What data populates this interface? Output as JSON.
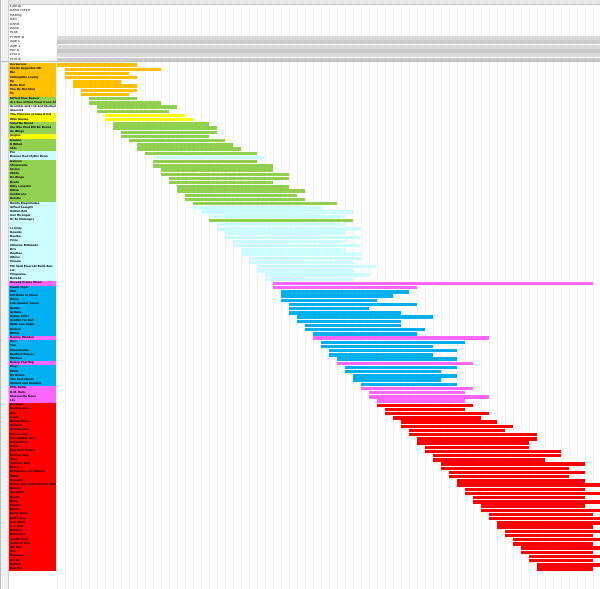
{
  "header_labels": [
    "Group",
    "Band Place",
    "Rating",
    "Bell",
    "Band",
    "Rank",
    "Rule",
    "Prime #",
    "Age 0",
    "Age 1",
    "Rel #",
    "End 0",
    "End #"
  ],
  "week_count": 68,
  "colors": {
    "orange": "#ffc000",
    "yellow": "#ffff00",
    "lightgreen": "#c5e0b3",
    "green": "#92d050",
    "lightblue": "#ccffff",
    "magenta": "#ff66ff",
    "blue": "#00b0f0",
    "red": "#ff0000",
    "white": "#ffffff"
  },
  "songs": [
    {
      "title": "Gorkscrew",
      "color": "orange",
      "start": 0,
      "length": 10,
      "bar": "orange"
    },
    {
      "title": "Chella Regardez IIB",
      "color": "orange",
      "start": 1,
      "length": 12,
      "bar": "orange"
    },
    {
      "title": "Blo",
      "color": "orange",
      "start": 1,
      "length": 8,
      "bar": "orange"
    },
    {
      "title": "Midnightin Loving",
      "color": "orange",
      "start": 1,
      "length": 9,
      "bar": "orange"
    },
    {
      "title": "Pp",
      "color": "orange",
      "start": 2,
      "length": 6,
      "bar": "orange"
    },
    {
      "title": "Belle Bell",
      "color": "orange",
      "start": 2,
      "length": 8,
      "bar": "orange"
    },
    {
      "title": "The By Bel Abel",
      "color": "orange",
      "start": 3,
      "length": 7,
      "bar": "orange"
    },
    {
      "title": "Tu",
      "color": "orange",
      "start": 3,
      "length": 6,
      "bar": "orange"
    },
    {
      "title": "Gifted Blue Beaver",
      "color": "green",
      "start": 4,
      "length": 6,
      "bar": "green"
    },
    {
      "title": "Are See Gifted Posel Irene Alt",
      "color": "green",
      "start": 4,
      "length": 9,
      "bar": "green"
    },
    {
      "title": "Grumble and roll and Medium Alb",
      "color": "white",
      "start": 5,
      "length": 10,
      "bar": "green"
    },
    {
      "title": "Glascott",
      "color": "white",
      "start": 5,
      "length": 9,
      "bar": "green"
    },
    {
      "title": "The Princess of Gela B list",
      "color": "yellow",
      "start": 6,
      "length": 10,
      "bar": "yellow"
    },
    {
      "title": "Wile Kaylee",
      "color": "yellow",
      "start": 6,
      "length": 11,
      "bar": "yellow"
    },
    {
      "title": "Sand Be Bored",
      "color": "green",
      "start": 7,
      "length": 12,
      "bar": "green"
    },
    {
      "title": "Ole Bile Mod Bill Be Bored",
      "color": "green",
      "start": 7,
      "length": 13,
      "bar": "green"
    },
    {
      "title": "Go Bingo",
      "color": "green",
      "start": 8,
      "length": 12,
      "bar": "green"
    },
    {
      "title": "Angles",
      "color": "yellow",
      "start": 8,
      "length": 11,
      "bar": "green"
    },
    {
      "title": "Doubte",
      "color": "green",
      "start": 9,
      "length": 12,
      "bar": "green"
    },
    {
      "title": "K Billed",
      "color": "green",
      "start": 10,
      "length": 12,
      "bar": "green"
    },
    {
      "title": "Shis",
      "color": "green",
      "start": 10,
      "length": 13,
      "bar": "green"
    },
    {
      "title": "Pix",
      "color": "lightblue",
      "start": 11,
      "length": 14,
      "bar": "green"
    },
    {
      "title": "Bonner Red Myths Benn",
      "color": "lightblue",
      "start": 12,
      "length": 14,
      "bar": "lightblue"
    },
    {
      "title": "Galmen",
      "color": "green",
      "start": 12,
      "length": 13,
      "bar": "green"
    },
    {
      "title": "Shewerelle",
      "color": "green",
      "start": 12,
      "length": 15,
      "bar": "green"
    },
    {
      "title": "Sivion",
      "color": "green",
      "start": 13,
      "length": 14,
      "bar": "green"
    },
    {
      "title": "Wilde",
      "color": "green",
      "start": 13,
      "length": 16,
      "bar": "green"
    },
    {
      "title": "Do Bingo",
      "color": "green",
      "start": 14,
      "length": 15,
      "bar": "green"
    },
    {
      "title": "Brads",
      "color": "green",
      "start": 14,
      "length": 13,
      "bar": "green"
    },
    {
      "title": "Dilly Lensohn",
      "color": "green",
      "start": 15,
      "length": 14,
      "bar": "green"
    },
    {
      "title": "Dillan",
      "color": "green",
      "start": 15,
      "length": 16,
      "bar": "green"
    },
    {
      "title": "Sunthrone",
      "color": "green",
      "start": 16,
      "length": 14,
      "bar": "green"
    },
    {
      "title": "Bendie",
      "color": "green",
      "start": 16,
      "length": 15,
      "bar": "green"
    },
    {
      "title": "Banda Magnitudes",
      "color": "lightblue",
      "start": 17,
      "length": 18,
      "bar": "green"
    },
    {
      "title": "Gifted Seeight",
      "color": "lightblue",
      "start": 17,
      "length": 16,
      "bar": "lightblue"
    },
    {
      "title": "Rathin Bell",
      "color": "lightblue",
      "start": 18,
      "length": 19,
      "bar": "lightblue"
    },
    {
      "title": "Ann Birengel",
      "color": "lightblue",
      "start": 19,
      "length": 17,
      "bar": "lightblue"
    },
    {
      "title": "Dr Br Midengel",
      "color": "lightblue",
      "start": 19,
      "length": 18,
      "bar": "green"
    },
    {
      "title": "",
      "color": "lightblue",
      "start": 20,
      "length": 16,
      "bar": "lightblue"
    },
    {
      "title": "Ll Andy",
      "color": "lightblue",
      "start": 20,
      "length": 18,
      "bar": "lightblue"
    },
    {
      "title": "Dewide",
      "color": "lightblue",
      "start": 21,
      "length": 15,
      "bar": "lightblue"
    },
    {
      "title": "Beelbe",
      "color": "lightblue",
      "start": 21,
      "length": 17,
      "bar": "lightblue"
    },
    {
      "title": "Prize",
      "color": "lightblue",
      "start": 22,
      "length": 14,
      "bar": "lightblue"
    },
    {
      "title": "Allianne Midlands",
      "color": "lightblue",
      "start": 22,
      "length": 16,
      "bar": "lightblue"
    },
    {
      "title": "Bris",
      "color": "lightblue",
      "start": 23,
      "length": 13,
      "bar": "lightblue"
    },
    {
      "title": "Beatlee",
      "color": "lightblue",
      "start": 23,
      "length": 15,
      "bar": "lightblue"
    },
    {
      "title": "Whine",
      "color": "lightblue",
      "start": 24,
      "length": 14,
      "bar": "lightblue"
    },
    {
      "title": "Pinana",
      "color": "lightblue",
      "start": 24,
      "length": 13,
      "bar": "lightblue"
    },
    {
      "title": "Pik Spill Emerald Bella Bon",
      "color": "lightblue",
      "start": 25,
      "length": 15,
      "bar": "lightblue"
    },
    {
      "title": "Liz",
      "color": "lightblue",
      "start": 25,
      "length": 12,
      "bar": "lightblue"
    },
    {
      "title": "Pingunine",
      "color": "lightblue",
      "start": 26,
      "length": 13,
      "bar": "lightblue"
    },
    {
      "title": "Boradd",
      "color": "lightblue",
      "start": 26,
      "length": 11,
      "bar": "lightblue"
    },
    {
      "title": "Boradd Praise Moon",
      "color": "magenta",
      "start": 27,
      "length": 40,
      "bar": "magenta"
    },
    {
      "title": "Pewin Tiger",
      "color": "blue",
      "start": 27,
      "length": 18,
      "bar": "magenta"
    },
    {
      "title": "Mill",
      "color": "blue",
      "start": 28,
      "length": 16,
      "bar": "blue"
    },
    {
      "title": "Old Bella in Moon",
      "color": "blue",
      "start": 28,
      "length": 14,
      "bar": "blue"
    },
    {
      "title": "Moon",
      "color": "blue",
      "start": 28,
      "length": 12,
      "bar": "blue"
    },
    {
      "title": "Lad Amelon Sneus",
      "color": "blue",
      "start": 29,
      "length": 16,
      "bar": "blue"
    },
    {
      "title": "Denbo",
      "color": "blue",
      "start": 29,
      "length": 10,
      "bar": "blue"
    },
    {
      "title": "Gribble",
      "color": "blue",
      "start": 29,
      "length": 14,
      "bar": "blue"
    },
    {
      "title": "Dyline Pride",
      "color": "blue",
      "start": 30,
      "length": 17,
      "bar": "blue"
    },
    {
      "title": "Scotlin Tin Bell",
      "color": "blue",
      "start": 30,
      "length": 13,
      "bar": "blue"
    },
    {
      "title": "Bells and Anglo",
      "color": "blue",
      "start": 31,
      "length": 12,
      "bar": "blue"
    },
    {
      "title": "Bellers",
      "color": "blue",
      "start": 31,
      "length": 15,
      "bar": "blue"
    },
    {
      "title": "Rithie",
      "color": "blue",
      "start": 32,
      "length": 13,
      "bar": "blue"
    },
    {
      "title": "Bonnie Warden",
      "color": "magenta",
      "start": 32,
      "length": 22,
      "bar": "magenta"
    },
    {
      "title": "Kiva",
      "color": "blue",
      "start": 33,
      "length": 18,
      "bar": "blue"
    },
    {
      "title": "Tim",
      "color": "blue",
      "start": 33,
      "length": 14,
      "bar": "blue"
    },
    {
      "title": "Supermodle",
      "color": "blue",
      "start": 34,
      "length": 16,
      "bar": "blue"
    },
    {
      "title": "Bedford Bessel",
      "color": "blue",
      "start": 34,
      "length": 13,
      "bar": "blue"
    },
    {
      "title": "Marhen",
      "color": "blue",
      "start": 35,
      "length": 15,
      "bar": "blue"
    },
    {
      "title": "Bellop Fearling",
      "color": "magenta",
      "start": 35,
      "length": 17,
      "bar": "magenta"
    },
    {
      "title": "Pogo",
      "color": "blue",
      "start": 36,
      "length": 14,
      "bar": "blue"
    },
    {
      "title": "Mikia",
      "color": "blue",
      "start": 36,
      "length": 12,
      "bar": "blue"
    },
    {
      "title": "Bo Brand",
      "color": "blue",
      "start": 37,
      "length": 13,
      "bar": "blue"
    },
    {
      "title": "The Red Album",
      "color": "blue",
      "start": 37,
      "length": 11,
      "bar": "blue"
    },
    {
      "title": "Melted and Belated",
      "color": "blue",
      "start": 38,
      "length": 12,
      "bar": "blue"
    },
    {
      "title": "Ellie Bellie",
      "color": "magenta",
      "start": 38,
      "length": 14,
      "bar": "magenta"
    },
    {
      "title": "D.M. Bells",
      "color": "magenta",
      "start": 39,
      "length": 12,
      "bar": "magenta"
    },
    {
      "title": "Stormorite Bone",
      "color": "magenta",
      "start": 39,
      "length": 15,
      "bar": "magenta"
    },
    {
      "title": "Lin",
      "color": "magenta",
      "start": 40,
      "length": 11,
      "bar": "magenta"
    },
    {
      "title": "Bananas",
      "color": "red",
      "start": 40,
      "length": 12,
      "bar": "red"
    },
    {
      "title": "Beebee Bon",
      "color": "red",
      "start": 41,
      "length": 10,
      "bar": "red"
    },
    {
      "title": "Oho",
      "color": "red",
      "start": 41,
      "length": 13,
      "bar": "red"
    },
    {
      "title": "Laplo",
      "color": "red",
      "start": 42,
      "length": 11,
      "bar": "red"
    },
    {
      "title": "Ballad Bong",
      "color": "red",
      "start": 43,
      "length": 12,
      "bar": "red"
    },
    {
      "title": "Phemin",
      "color": "red",
      "start": 43,
      "length": 14,
      "bar": "red"
    },
    {
      "title": "Andrew Bell",
      "color": "red",
      "start": 44,
      "length": 12,
      "bar": "red"
    },
    {
      "title": "Cheese Lite",
      "color": "red",
      "start": 44,
      "length": 16,
      "bar": "red"
    },
    {
      "title": "The Babble Bell",
      "color": "red",
      "start": 45,
      "length": 15,
      "bar": "red"
    },
    {
      "title": "Antebellum",
      "color": "red",
      "start": 45,
      "length": 14,
      "bar": "red"
    },
    {
      "title": "Chan",
      "color": "red",
      "start": 46,
      "length": 13,
      "bar": "red"
    },
    {
      "title": "Bell Bold Fellow",
      "color": "red",
      "start": 46,
      "length": 17,
      "bar": "red"
    },
    {
      "title": "Sammy Bell",
      "color": "red",
      "start": 47,
      "length": 16,
      "bar": "red"
    },
    {
      "title": "Mars",
      "color": "red",
      "start": 47,
      "length": 14,
      "bar": "red"
    },
    {
      "title": "Chimmy Bell",
      "color": "red",
      "start": 48,
      "length": 18,
      "bar": "red"
    },
    {
      "title": "Bruno",
      "color": "red",
      "start": 48,
      "length": 16,
      "bar": "red"
    },
    {
      "title": "Raindrops and Mambo",
      "color": "red",
      "start": 49,
      "length": 17,
      "bar": "red"
    },
    {
      "title": "Millie",
      "color": "red",
      "start": 49,
      "length": 15,
      "bar": "red"
    },
    {
      "title": "Bensoft",
      "color": "red",
      "start": 50,
      "length": 16,
      "bar": "red"
    },
    {
      "title": "Annus Big Anticicantoon Bell Stile",
      "color": "red",
      "start": 50,
      "length": 18,
      "bar": "red"
    },
    {
      "title": "Bellum",
      "color": "red",
      "start": 51,
      "length": 15,
      "bar": "red"
    },
    {
      "title": "Shellvine",
      "color": "red",
      "start": 51,
      "length": 17,
      "bar": "red"
    },
    {
      "title": "Bendy",
      "color": "red",
      "start": 52,
      "length": 14,
      "bar": "red"
    },
    {
      "title": "Brow",
      "color": "red",
      "start": 52,
      "length": 16,
      "bar": "red"
    },
    {
      "title": "Cibella",
      "color": "red",
      "start": 53,
      "length": 13,
      "bar": "red"
    },
    {
      "title": "Bubbs",
      "color": "red",
      "start": 53,
      "length": 15,
      "bar": "red"
    },
    {
      "title": "Bellie Dump",
      "color": "red",
      "start": 54,
      "length": 13,
      "bar": "red"
    },
    {
      "title": "Puff Soley",
      "color": "red",
      "start": 54,
      "length": 14,
      "bar": "red"
    },
    {
      "title": "Sole Best",
      "color": "red",
      "start": 55,
      "length": 13,
      "bar": "red"
    },
    {
      "title": "T. L. Bell",
      "color": "red",
      "start": 55,
      "length": 12,
      "bar": "red"
    },
    {
      "title": "Bonbon",
      "color": "red",
      "start": 56,
      "length": 12,
      "bar": "red"
    },
    {
      "title": "Bells Butt",
      "color": "red",
      "start": 56,
      "length": 11,
      "bar": "red"
    },
    {
      "title": "Laddie Bell",
      "color": "red",
      "start": 57,
      "length": 11,
      "bar": "red"
    },
    {
      "title": "Spirit of Bell",
      "color": "red",
      "start": 57,
      "length": 10,
      "bar": "red"
    },
    {
      "title": "Kid Bell",
      "color": "red",
      "start": 58,
      "length": 10,
      "bar": "red"
    },
    {
      "title": "Poe",
      "color": "red",
      "start": 58,
      "length": 9,
      "bar": "red"
    },
    {
      "title": "Bellaway",
      "color": "red",
      "start": 59,
      "length": 9,
      "bar": "red"
    },
    {
      "title": "Sol Bo",
      "color": "red",
      "start": 59,
      "length": 8,
      "bar": "red"
    },
    {
      "title": "Bellion",
      "color": "red",
      "start": 60,
      "length": 8,
      "bar": "red"
    },
    {
      "title": "Dec Bel",
      "color": "red",
      "start": 60,
      "length": 7,
      "bar": "red"
    }
  ]
}
